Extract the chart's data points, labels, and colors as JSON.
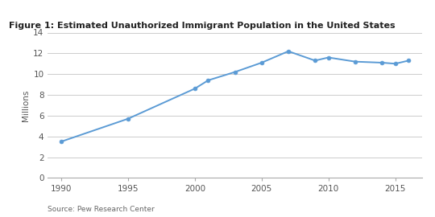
{
  "title": "Figure 1: Estimated Unauthorized Immigrant Population in the United States",
  "source": "Source: Pew Research Center",
  "ylabel": "Millions",
  "years": [
    1990,
    1995,
    2000,
    2001,
    2003,
    2005,
    2007,
    2009,
    2010,
    2012,
    2014,
    2015,
    2016
  ],
  "values": [
    3.5,
    5.7,
    8.6,
    9.4,
    10.2,
    11.1,
    12.2,
    11.3,
    11.6,
    11.2,
    11.1,
    11.0,
    11.3
  ],
  "line_color": "#5b9bd5",
  "marker_color": "#5b9bd5",
  "background_color": "#ffffff",
  "grid_color": "#cccccc",
  "xlim": [
    1989,
    2017
  ],
  "ylim": [
    0,
    14
  ],
  "yticks": [
    0,
    2,
    4,
    6,
    8,
    10,
    12,
    14
  ],
  "xticks": [
    1990,
    1995,
    2000,
    2005,
    2010,
    2015
  ],
  "title_fontsize": 8,
  "axis_fontsize": 7.5,
  "source_fontsize": 6.5,
  "top_bar_color": "#5b9bd5"
}
